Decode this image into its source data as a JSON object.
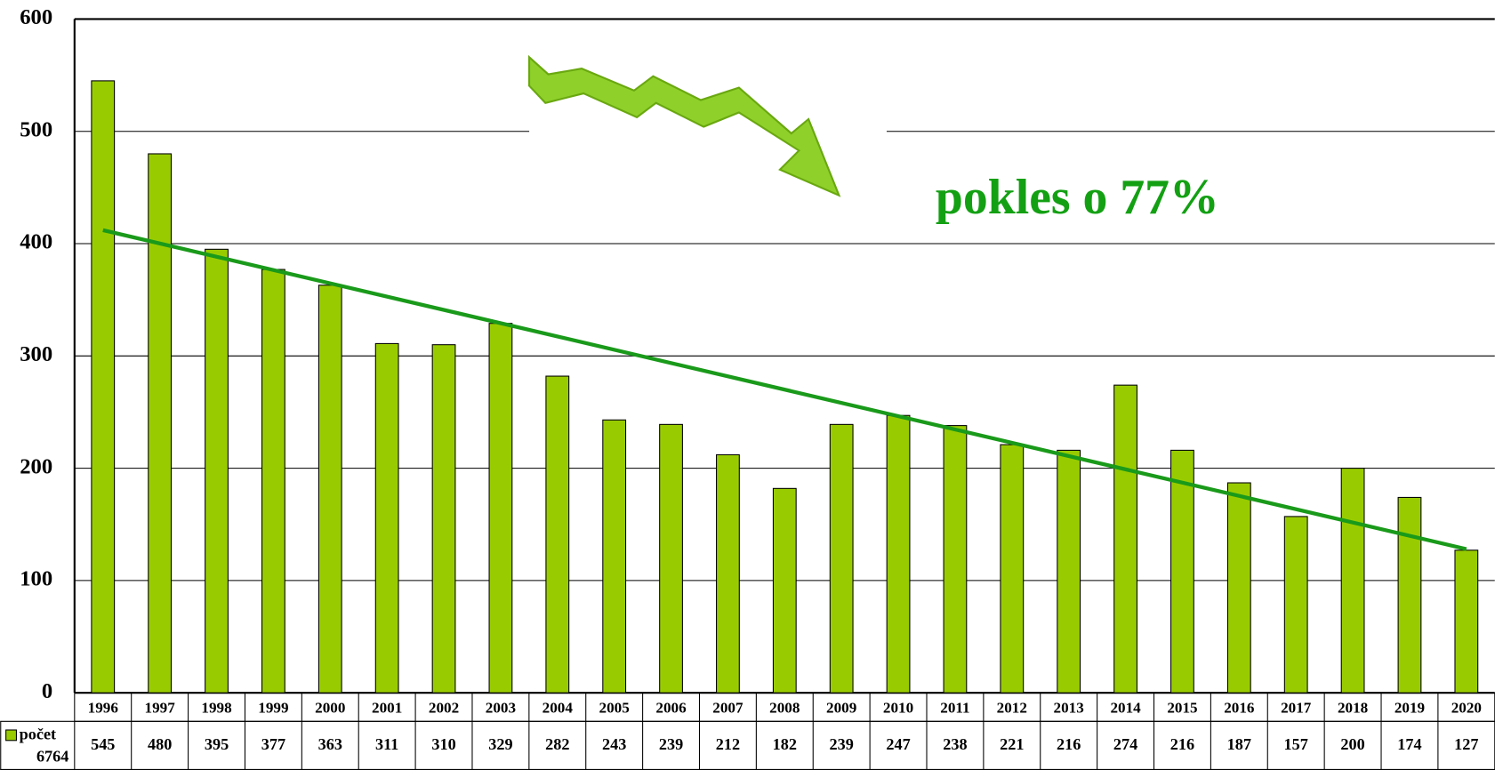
{
  "chart_data": {
    "type": "bar",
    "categories": [
      "1996",
      "1997",
      "1998",
      "1999",
      "2000",
      "2001",
      "2002",
      "2003",
      "2004",
      "2005",
      "2006",
      "2007",
      "2008",
      "2009",
      "2010",
      "2011",
      "2012",
      "2013",
      "2014",
      "2015",
      "2016",
      "2017",
      "2018",
      "2019",
      "2020"
    ],
    "series": [
      {
        "name": "počet",
        "color": "#99cc00",
        "total": 6764,
        "values": [
          545,
          480,
          395,
          377,
          363,
          311,
          310,
          329,
          282,
          243,
          239,
          212,
          182,
          239,
          247,
          238,
          221,
          216,
          274,
          216,
          187,
          157,
          200,
          174,
          127
        ]
      }
    ],
    "trend": {
      "color": "#1a9a1a",
      "values": [
        412,
        128
      ]
    },
    "annotation": "pokles o 77%",
    "ylim": [
      0,
      600
    ],
    "yticks": [
      0,
      100,
      200,
      300,
      400,
      500,
      600
    ],
    "grid": true
  }
}
